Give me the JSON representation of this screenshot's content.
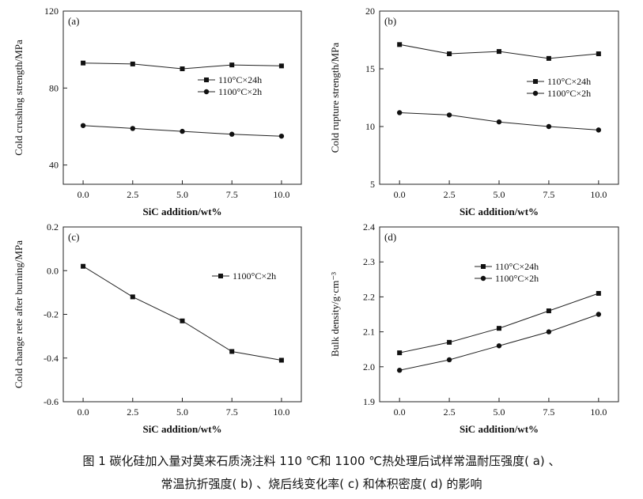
{
  "caption": {
    "line1": "图 1    碳化硅加入量对莫来石质浇注料 110 ℃和 1100 ℃热处理后试样常温耐压强度( a) 、",
    "line2": "常温抗折强度( b) 、烧后线变化率( c) 和体积密度( d) 的影响"
  },
  "chart_data": [
    {
      "id": "a",
      "type": "line",
      "panel_label": "(a)",
      "xlabel": "SiC addition/wt%",
      "ylabel": "Cold crushing strength/MPa",
      "x": [
        0.0,
        2.5,
        5.0,
        7.5,
        10.0
      ],
      "xticks": [
        "0.0",
        "2.5",
        "5.0",
        "7.5",
        "10.0"
      ],
      "xlim": [
        -1,
        11
      ],
      "ylim": [
        30,
        120
      ],
      "yticks": [
        40,
        80,
        120
      ],
      "ytick_labels": [
        "40",
        "80",
        "120"
      ],
      "legend_position": "right",
      "series": [
        {
          "name": "110°C×24h",
          "marker": "square",
          "values": [
            93,
            92.5,
            90,
            92,
            91.5
          ]
        },
        {
          "name": "1100°C×2h",
          "marker": "circle",
          "values": [
            60.5,
            59,
            57.5,
            56,
            55
          ]
        }
      ]
    },
    {
      "id": "b",
      "type": "line",
      "panel_label": "(b)",
      "xlabel": "SiC addition/wt%",
      "ylabel": "Cold rupture strength/MPa",
      "x": [
        0.0,
        2.5,
        5.0,
        7.5,
        10.0
      ],
      "xticks": [
        "0.0",
        "2.5",
        "5.0",
        "7.5",
        "10.0"
      ],
      "xlim": [
        -1,
        11
      ],
      "ylim": [
        5,
        20
      ],
      "yticks": [
        5,
        10,
        15,
        20
      ],
      "ytick_labels": [
        "5",
        "10",
        "15",
        "20"
      ],
      "legend_position": "right",
      "series": [
        {
          "name": "110°C×24h",
          "marker": "square",
          "values": [
            17.1,
            16.3,
            16.5,
            15.9,
            16.3
          ]
        },
        {
          "name": "1100°C×2h",
          "marker": "circle",
          "values": [
            11.2,
            11.0,
            10.4,
            10.0,
            9.7
          ]
        }
      ]
    },
    {
      "id": "c",
      "type": "line",
      "panel_label": "(c)",
      "xlabel": "SiC addition/wt%",
      "ylabel": "Cold change rete after burning/MPa",
      "x": [
        0.0,
        2.5,
        5.0,
        7.5,
        10.0
      ],
      "xticks": [
        "0.0",
        "2.5",
        "5.0",
        "7.5",
        "10.0"
      ],
      "xlim": [
        -1,
        11
      ],
      "ylim": [
        -0.6,
        0.2
      ],
      "yticks": [
        -0.6,
        -0.4,
        -0.2,
        0.0,
        0.2
      ],
      "ytick_labels": [
        "-0.6",
        "-0.4",
        "-0.2",
        "0.0",
        "0.2"
      ],
      "legend_position": "top-right",
      "series": [
        {
          "name": "1100°C×2h",
          "marker": "square",
          "values": [
            0.02,
            -0.12,
            -0.23,
            -0.37,
            -0.41
          ]
        }
      ]
    },
    {
      "id": "d",
      "type": "line",
      "panel_label": "(d)",
      "xlabel": "SiC addition/wt%",
      "ylabel": "Bulk density/g·cm⁻³",
      "x": [
        0.0,
        2.5,
        5.0,
        7.5,
        10.0
      ],
      "xticks": [
        "0.0",
        "2.5",
        "5.0",
        "7.5",
        "10.0"
      ],
      "xlim": [
        -1,
        11
      ],
      "ylim": [
        1.9,
        2.4
      ],
      "yticks": [
        1.9,
        2.0,
        2.1,
        2.2,
        2.3,
        2.4
      ],
      "ytick_labels": [
        "1.9",
        "2.0",
        "2.1",
        "2.2",
        "2.3",
        "2.4"
      ],
      "legend_position": "top-center",
      "series": [
        {
          "name": "110°C×24h",
          "marker": "square",
          "values": [
            2.04,
            2.07,
            2.11,
            2.16,
            2.21
          ]
        },
        {
          "name": "1100°C×2h",
          "marker": "circle",
          "values": [
            1.99,
            2.02,
            2.06,
            2.1,
            2.15
          ]
        }
      ]
    }
  ]
}
